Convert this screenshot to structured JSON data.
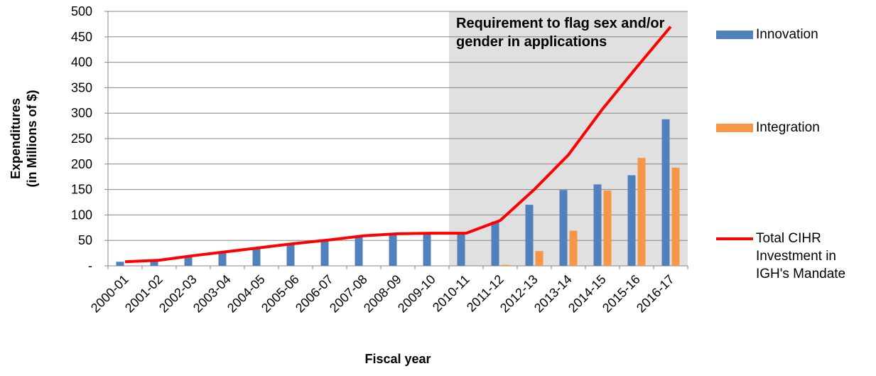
{
  "chart_data": {
    "type": "bar",
    "annotation": "Requirement to flag sex and/or gender in applications",
    "xlabel": "Fiscal year",
    "ylabel": [
      "Expenditures",
      "(in Millions of $)"
    ],
    "categories": [
      "2000-01",
      "2001-02",
      "2002-03",
      "2003-04",
      "2004-05",
      "2005-06",
      "2006-07",
      "2007-08",
      "2008-09",
      "2009-10",
      "2010-11",
      "2011-12",
      "2012-13",
      "2013-14",
      "2014-15",
      "2015-16",
      "2016-17"
    ],
    "series": [
      {
        "name": "Innovation",
        "type": "bar",
        "color": "#4f81bd",
        "values": [
          8,
          9,
          17,
          25,
          33,
          42,
          50,
          57,
          62,
          63,
          63,
          87,
          120,
          149,
          160,
          178,
          288
        ]
      },
      {
        "name": "Integration",
        "type": "bar",
        "color": "#f79646",
        "values": [
          0,
          0,
          0,
          0,
          0,
          0,
          0,
          0,
          0,
          0,
          0,
          2,
          29,
          69,
          148,
          212,
          193
        ]
      },
      {
        "name": "Total CIHR Investment in IGH's Mandate",
        "type": "line",
        "color": "#ff0000",
        "values": [
          8,
          11,
          20,
          28,
          36,
          44,
          51,
          59,
          63,
          64,
          64,
          89,
          150,
          218,
          308,
          390,
          470
        ]
      }
    ],
    "ylim": [
      0,
      500
    ],
    "yticks": [
      {
        "value": 0,
        "label": "-"
      },
      50,
      100,
      150,
      200,
      250,
      300,
      350,
      400,
      450,
      500
    ],
    "grid": true,
    "legend": "right"
  }
}
